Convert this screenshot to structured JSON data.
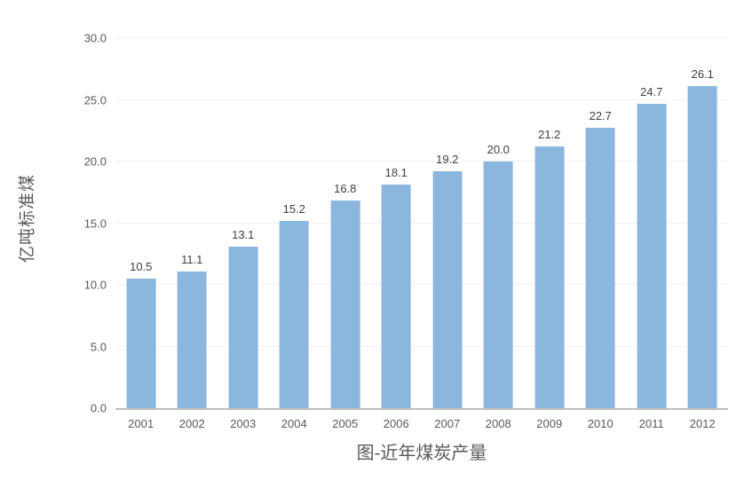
{
  "chart_data": {
    "type": "bar",
    "title": "图-近年煤炭产量",
    "xlabel": "",
    "ylabel": "亿吨标准煤",
    "categories": [
      "2001",
      "2002",
      "2003",
      "2004",
      "2005",
      "2006",
      "2007",
      "2008",
      "2009",
      "2010",
      "2011",
      "2012"
    ],
    "values": [
      10.5,
      11.1,
      13.1,
      15.2,
      16.8,
      18.1,
      19.2,
      20.0,
      21.2,
      22.7,
      24.7,
      26.1
    ],
    "ylim": [
      0,
      30
    ],
    "ytick_step": 5,
    "ytick_labels": [
      "0.0",
      "5.0",
      "10.0",
      "15.0",
      "20.0",
      "25.0",
      "30.0"
    ],
    "grid": true,
    "legend": "none",
    "colors": {
      "bar_fill": "#8BB7DF",
      "gridline": "#F0F0F0",
      "baseline": "#BFBFBF",
      "axis_text": "#595959",
      "data_label_text": "#404040",
      "title_text": "#595959"
    }
  }
}
